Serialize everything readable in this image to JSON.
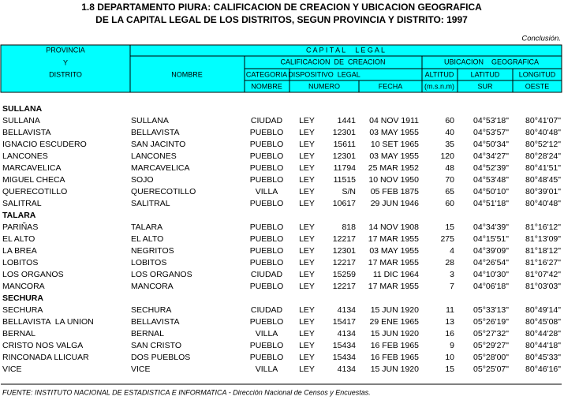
{
  "title": {
    "line1": "1.8 DEPARTAMENTO PIURA: CALIFICACION DE CREACION Y UBICACION GEOGRAFICA",
    "line2": "DE LA CAPITAL LEGAL DE LOS DISTRITOS, SEGUN PROVINCIA Y DISTRITO: 1997"
  },
  "note": "Conclusión.",
  "table_header": {
    "provincia": "PROVINCIA",
    "y": "Y",
    "distrito": "DISTRITO",
    "nombre": "NOMBRE",
    "capital_legal": "C A P I T A L     L E G A L",
    "calificacion": "CALIFICACION  DE  CREACION",
    "ubicacion": "UBICACION    GEOGRAFICA",
    "categoria": "CATEGORIA",
    "dispositivo": "DISPOSITIVO  LEGAL",
    "altitud": "ALTITUD",
    "latitud": "LATITUD",
    "longitud": "LONGITUD",
    "cat_nombre": "NOMBRE",
    "numero": "NUMERO",
    "fecha": "FECHA",
    "msnm": "(m.s.n.m)",
    "sur": "SUR",
    "oeste": "OESTE"
  },
  "sections": [
    {
      "name": "SULLANA",
      "rows": [
        [
          "SULLANA",
          "SULLANA",
          "CIUDAD",
          "LEY",
          "1441",
          "04 NOV 1911",
          "60",
          "04°53'18\"",
          "80°41'07\""
        ],
        [
          "BELLAVISTA",
          "BELLAVISTA",
          "PUEBLO",
          "LEY",
          "12301",
          "03 MAY 1955",
          "40",
          "04°53'57\"",
          "80°40'48\""
        ],
        [
          "IGNACIO ESCUDERO",
          "SAN JACINTO",
          "PUEBLO",
          "LEY",
          "15611",
          "10 SET 1965",
          "35",
          "04°50'34\"",
          "80°52'12\""
        ],
        [
          "LANCONES",
          "LANCONES",
          "PUEBLO",
          "LEY",
          "12301",
          "03 MAY 1955",
          "120",
          "04°34'27\"",
          "80°28'24\""
        ],
        [
          "MARCAVELICA",
          "MARCAVELICA",
          "PUEBLO",
          "LEY",
          "11794",
          "25 MAR 1952",
          "48",
          "04°52'39\"",
          "80°41'51\""
        ],
        [
          "MIGUEL CHECA",
          "SOJO",
          "PUEBLO",
          "LEY",
          "11515",
          "10 NOV 1950",
          "70",
          "04°53'48\"",
          "80°48'45\""
        ],
        [
          "QUERECOTILLO",
          "QUERECOTILLO",
          "VILLA",
          "LEY",
          "S/N",
          "05 FEB 1875",
          "65",
          "04°50'10\"",
          "80°39'01\""
        ],
        [
          "SALITRAL",
          "SALITRAL",
          "PUEBLO",
          "LEY",
          "10617",
          "29 JUN 1946",
          "60",
          "04°51'18\"",
          "80°40'48\""
        ]
      ]
    },
    {
      "name": "TALARA",
      "rows": [
        [
          "PARIÑAS",
          "TALARA",
          "PUEBLO",
          "LEY",
          "818",
          "14 NOV 1908",
          "15",
          "04°34'39\"",
          "81°16'12\""
        ],
        [
          "EL ALTO",
          "EL ALTO",
          "PUEBLO",
          "LEY",
          "12217",
          "17 MAR 1955",
          "275",
          "04°15'51\"",
          "81°13'09\""
        ],
        [
          "LA BREA",
          "NEGRITOS",
          "PUEBLO",
          "LEY",
          "12301",
          "03 MAY 1955",
          "4",
          "04°39'09\"",
          "81°18'12\""
        ],
        [
          "LOBITOS",
          "LOBITOS",
          "PUEBLO",
          "LEY",
          "12217",
          "17 MAR 1955",
          "28",
          "04°26'54\"",
          "81°16'27\""
        ],
        [
          "LOS ORGANOS",
          "LOS ORGANOS",
          "CIUDAD",
          "LEY",
          "15259",
          "11 DIC 1964",
          "3",
          "04°10'30\"",
          "81°07'42\""
        ],
        [
          "MANCORA",
          "MANCORA",
          "PUEBLO",
          "LEY",
          "12217",
          "17 MAR 1955",
          "7",
          "04°06'18\"",
          "81°03'03\""
        ]
      ]
    },
    {
      "name": "SECHURA",
      "rows": [
        [
          "SECHURA",
          "SECHURA",
          "CIUDAD",
          "LEY",
          "4134",
          "15 JUN 1920",
          "11",
          "05°33'13\"",
          "80°49'14\""
        ],
        [
          "BELLAVISTA  LA UNION",
          "BELLAVISTA",
          "PUEBLO",
          "LEY",
          "15417",
          "29 ENE 1965",
          "13",
          "05°26'19\"",
          "80°45'08\""
        ],
        [
          "BERNAL",
          "BERNAL",
          "VILLA",
          "LEY",
          "4134",
          "15 JUN 1920",
          "16",
          "05°27'32\"",
          "80°44'28\""
        ],
        [
          "CRISTO NOS VALGA",
          "SAN CRISTO",
          "PUEBLO",
          "LEY",
          "15434",
          "16 FEB 1965",
          "9",
          "05°29'27\"",
          "80°44'18\""
        ],
        [
          "RINCONADA LLICUAR",
          "DOS PUEBLOS",
          "PUEBLO",
          "LEY",
          "15434",
          "16 FEB 1965",
          "10",
          "05°28'00\"",
          "80°45'33\""
        ],
        [
          "VICE",
          "VICE",
          "VILLA",
          "LEY",
          "4134",
          "15 JUN 1920",
          "15",
          "05°25'07\"",
          "80°46'16\""
        ]
      ]
    }
  ],
  "footer": "FUENTE: INSTITUTO NACIONAL DE ESTADISTICA E INFORMATICA - Dirección Nacional de Censos y Encuestas."
}
